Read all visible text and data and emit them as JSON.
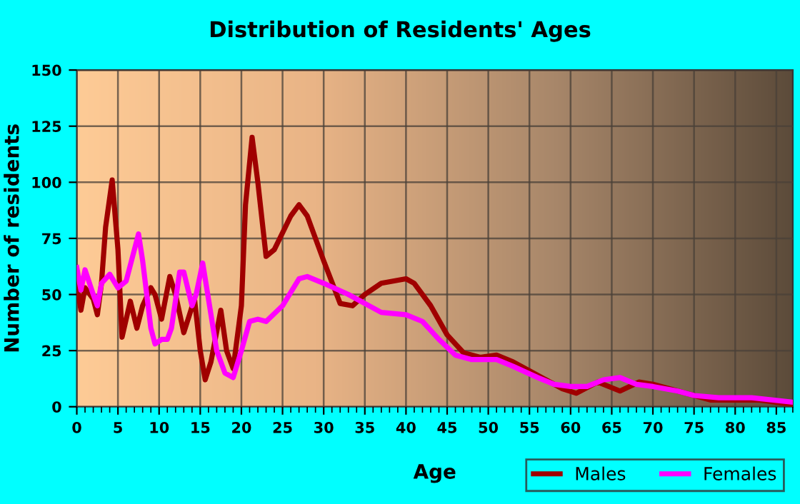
{
  "chart_data": {
    "type": "line",
    "title": "Distribution of Residents' Ages",
    "xlabel": "Age",
    "ylabel": "Number of residents",
    "xlim": [
      0,
      87
    ],
    "xticks": [
      0,
      5,
      10,
      15,
      20,
      25,
      30,
      35,
      40,
      45,
      50,
      55,
      60,
      65,
      70,
      75,
      80,
      85
    ],
    "ylim": [
      0,
      150
    ],
    "yticks": [
      0,
      25,
      50,
      75,
      100,
      125,
      150
    ],
    "grid": true,
    "legend": "bottom right",
    "marker": "none",
    "line_style": "solid",
    "series": [
      {
        "name": "Males",
        "color": "#a00000",
        "x": [
          0,
          0.5,
          1,
          2,
          2.5,
          3,
          3.5,
          4.3,
          5,
          5.5,
          6.5,
          7.3,
          8,
          9,
          9.5,
          10.3,
          11.3,
          12,
          13,
          14.3,
          15,
          15.6,
          16.3,
          17.5,
          18.2,
          19,
          20,
          20.5,
          21.3,
          22,
          23,
          24,
          26,
          27,
          28,
          30,
          32,
          33.5,
          35,
          37,
          40,
          41,
          43,
          45,
          47,
          49,
          51,
          53,
          55,
          57,
          59,
          60.7,
          63.3,
          66,
          68.3,
          70,
          72,
          75,
          77,
          80,
          83,
          87
        ],
        "values": [
          55,
          43,
          53,
          48,
          41,
          55,
          80,
          101,
          70,
          31,
          47,
          35,
          45,
          53,
          50,
          39,
          58,
          50,
          33,
          48,
          25,
          12,
          20,
          43,
          25,
          17,
          45,
          90,
          120,
          100,
          67,
          70,
          85,
          90,
          85,
          65,
          46,
          45,
          50,
          55,
          57,
          55,
          45,
          32,
          24,
          22,
          23,
          20,
          16,
          12,
          8,
          6,
          11,
          7,
          11,
          10,
          8,
          5,
          3,
          3,
          3,
          1
        ]
      },
      {
        "name": "Females",
        "color": "#ff00ff",
        "x": [
          0,
          0.5,
          1,
          2,
          2.5,
          3,
          4,
          5,
          6,
          7,
          7.5,
          8,
          9,
          9.5,
          10.3,
          11,
          11.5,
          12.5,
          13,
          14,
          14.5,
          15.3,
          16,
          17,
          18,
          19,
          20,
          21,
          22,
          23,
          25,
          27,
          28,
          30,
          33,
          35,
          37,
          40,
          42,
          44,
          46,
          48,
          51,
          53,
          56,
          58,
          60,
          62,
          64,
          66,
          68,
          70,
          73,
          75,
          78,
          82,
          87
        ],
        "values": [
          62,
          52,
          61,
          50,
          45,
          55,
          59,
          53,
          56,
          70,
          77,
          65,
          35,
          28,
          30,
          30,
          35,
          60,
          60,
          45,
          50,
          64,
          48,
          25,
          15,
          13,
          25,
          38,
          39,
          38,
          45,
          57,
          58,
          55,
          50,
          46,
          42,
          41,
          38,
          30,
          23,
          21,
          21,
          18,
          13,
          10,
          9,
          9,
          12,
          13,
          10,
          9,
          7,
          5,
          4,
          4,
          2
        ]
      }
    ]
  }
}
